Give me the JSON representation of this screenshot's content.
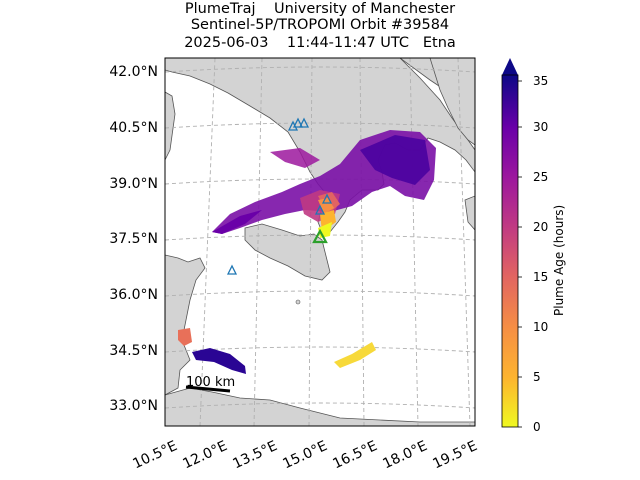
{
  "title": {
    "line1": "PlumeTraj    University of Manchester",
    "line2": "Sentinel-5P/TROPOMI Orbit #39584",
    "line3": "2025-06-03    11:44-11:47 UTC   Etna"
  },
  "map": {
    "lat_ticks": [
      "42.0°N",
      "40.5°N",
      "39.0°N",
      "37.5°N",
      "36.0°N",
      "34.5°N",
      "33.0°N"
    ],
    "lon_ticks": [
      "10.5°E",
      "12.0°E",
      "13.5°E",
      "15.0°E",
      "16.5°E",
      "18.0°E",
      "19.5°E"
    ],
    "scale_bar_label": "100 km",
    "land_color": "#d3d3d3",
    "sea_color": "#ffffff",
    "gridline_color": "#b0b0b0",
    "volcano_marker": {
      "name": "Etna",
      "color": "#2ca02c",
      "shape": "triangle"
    },
    "source_markers_color": "#1f77b4"
  },
  "colorbar": {
    "label": "Plume Age (hours)",
    "ticks": [
      "0",
      "5",
      "10",
      "15",
      "20",
      "25",
      "30",
      "35"
    ],
    "min": 0,
    "max": 35,
    "extend": "max",
    "colormap": "plasma_r"
  }
}
